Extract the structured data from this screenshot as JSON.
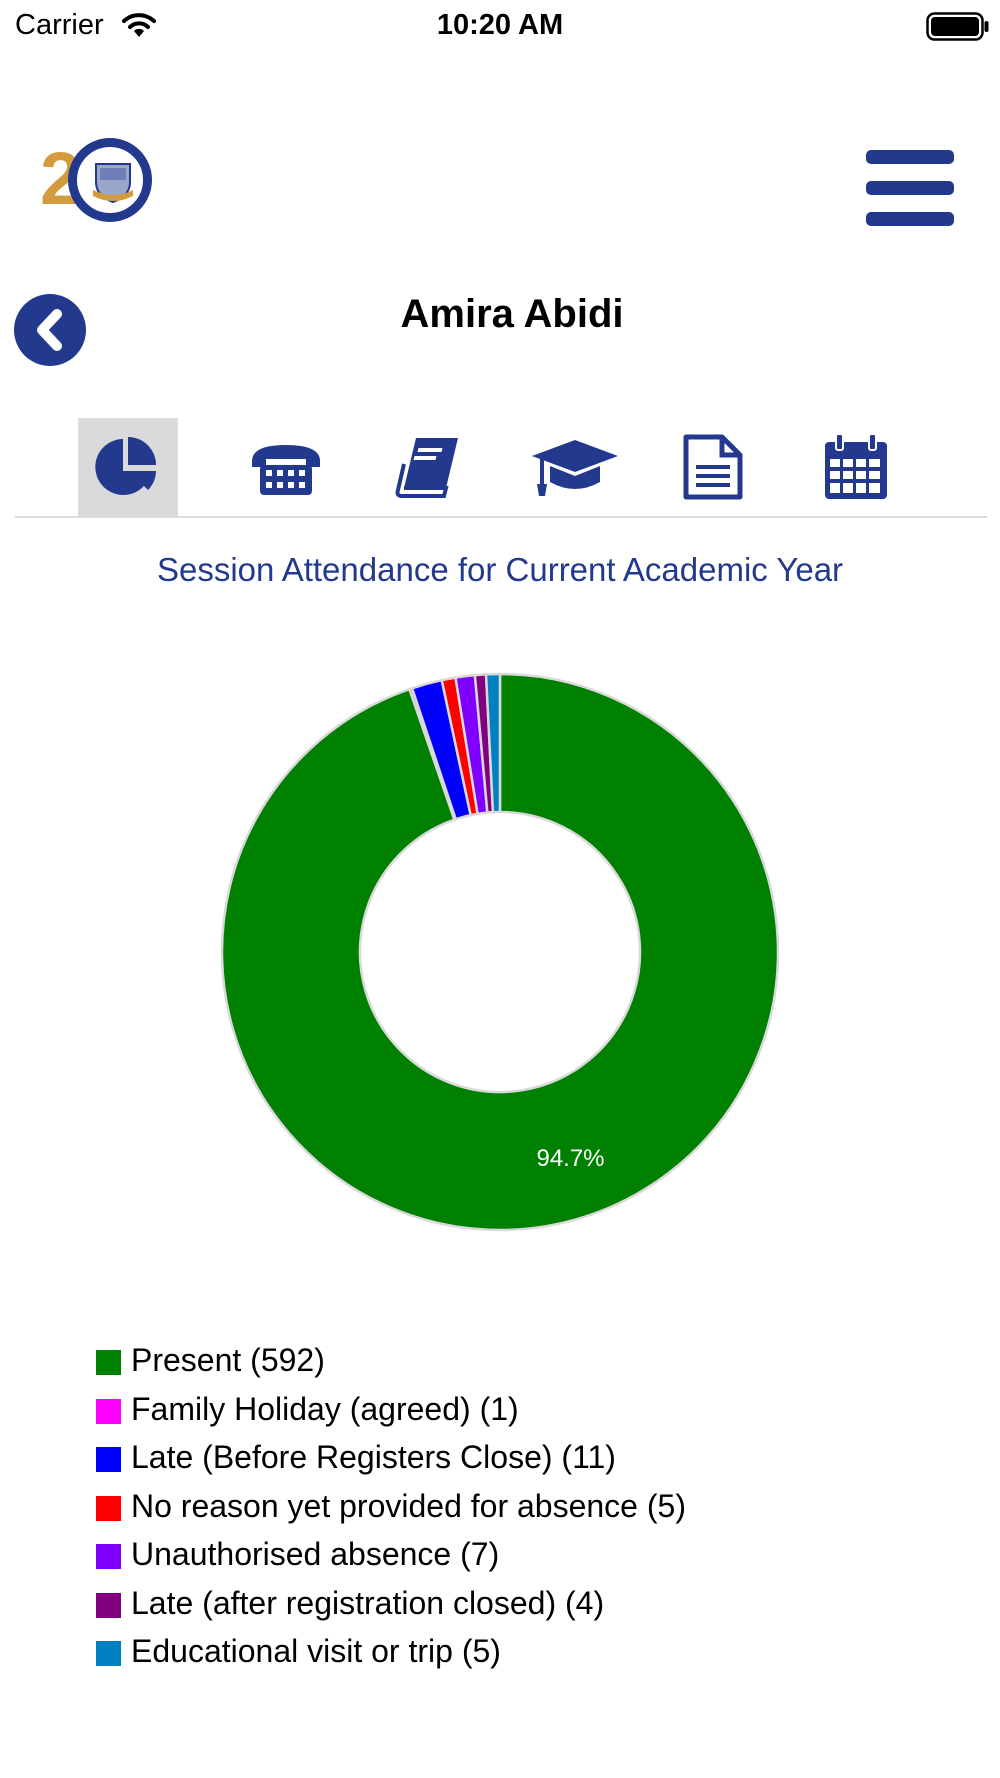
{
  "status_bar": {
    "carrier": "Carrier",
    "time": "10:20 AM"
  },
  "header": {
    "logo_text": "2",
    "menu_icon": "hamburger-menu-icon"
  },
  "student": {
    "name": "Amira Abidi",
    "back_icon": "chevron-left-icon"
  },
  "tabs": [
    {
      "icon": "pie-chart-icon",
      "active": true
    },
    {
      "icon": "telephone-icon",
      "active": false
    },
    {
      "icon": "book-icon",
      "active": false
    },
    {
      "icon": "graduation-cap-icon",
      "active": false
    },
    {
      "icon": "document-icon",
      "active": false
    },
    {
      "icon": "calendar-icon",
      "active": false
    }
  ],
  "chart_data": {
    "type": "pie",
    "title": "Session Attendance for Current Academic Year",
    "categories": [
      "Present",
      "Family Holiday (agreed)",
      "Late (Before Registers Close)",
      "No reason yet provided for absence",
      "Unauthorised absence",
      "Late (after registration closed)",
      "Educational visit or trip"
    ],
    "values": [
      592,
      1,
      11,
      5,
      7,
      4,
      5
    ],
    "colors": [
      "#008000",
      "#ff00ff",
      "#0000ff",
      "#ff0000",
      "#8000ff",
      "#800080",
      "#0080c0"
    ],
    "data_labels": [
      "94.7%",
      "",
      "",
      "",
      "",
      "",
      ""
    ],
    "legend_labels": [
      "Present (592)",
      "Family Holiday (agreed) (1)",
      "Late (Before Registers Close) (11)",
      "No reason yet provided for absence (5)",
      "Unauthorised absence (7)",
      "Late (after registration closed) (4)",
      "Educational visit or trip (5)"
    ],
    "donut": true,
    "legend_position": "bottom-left"
  }
}
